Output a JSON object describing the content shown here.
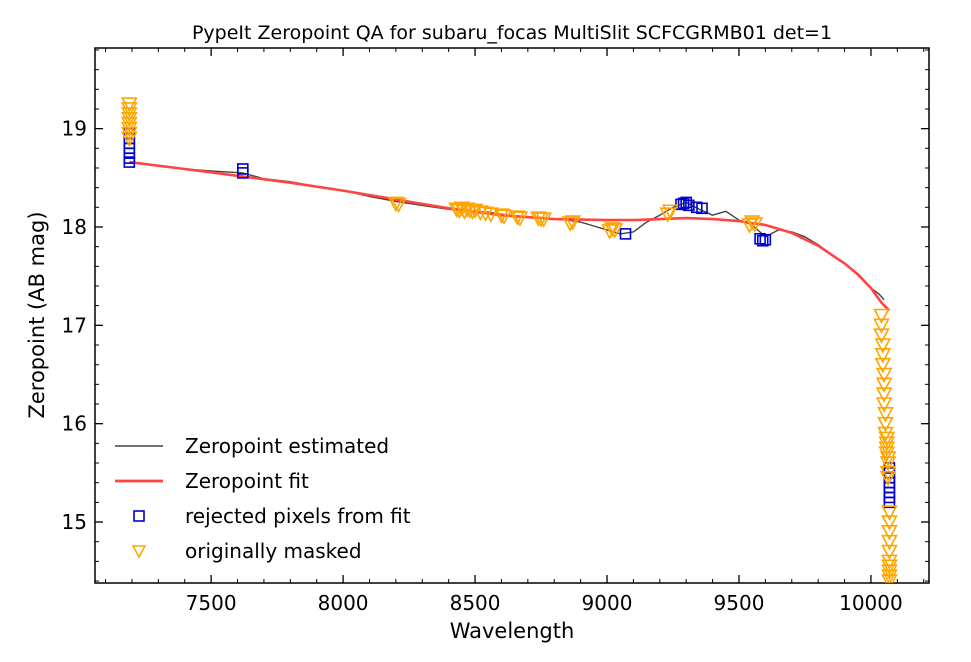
{
  "chart_data": {
    "type": "line",
    "title": "PypeIt Zeropoint QA for subaru_focas MultiSlit SCFCGRMB01 det=1",
    "xlabel": "Wavelength",
    "ylabel": "Zeropoint (AB mag)",
    "xlim": [
      7060,
      10220
    ],
    "ylim": [
      14.38,
      19.82
    ],
    "xticks": [
      7500,
      8000,
      8500,
      9000,
      9500,
      10000
    ],
    "xtick_labels": [
      "7500",
      "8000",
      "8500",
      "9000",
      "9500",
      "10000"
    ],
    "yticks": [
      15,
      16,
      17,
      18,
      19
    ],
    "ytick_labels": [
      "15",
      "16",
      "17",
      "18",
      "19"
    ],
    "legend_position": "lower-left",
    "grid": false,
    "series": [
      {
        "name": "Zeropoint estimated",
        "kind": "line",
        "color": "#444444",
        "x": [
          7190,
          7300,
          7400,
          7500,
          7620,
          7700,
          7800,
          7900,
          8000,
          8100,
          8200,
          8300,
          8400,
          8450,
          8500,
          8550,
          8600,
          8650,
          8700,
          8750,
          8800,
          8850,
          8900,
          8950,
          9000,
          9050,
          9100,
          9150,
          9200,
          9250,
          9300,
          9350,
          9400,
          9450,
          9500,
          9550,
          9600,
          9650,
          9700,
          9750,
          9800,
          9850,
          9900,
          9950,
          10000,
          10030,
          10050
        ],
        "y": [
          18.66,
          18.62,
          18.59,
          18.57,
          18.55,
          18.49,
          18.46,
          18.41,
          18.37,
          18.31,
          18.26,
          18.22,
          18.18,
          18.17,
          18.16,
          18.15,
          18.13,
          18.11,
          18.1,
          18.09,
          18.08,
          18.07,
          18.05,
          18.01,
          17.97,
          17.93,
          17.95,
          18.05,
          18.12,
          18.2,
          18.25,
          18.18,
          18.12,
          18.16,
          18.07,
          18.02,
          17.9,
          17.97,
          17.95,
          17.9,
          17.82,
          17.72,
          17.63,
          17.52,
          17.38,
          17.32,
          17.26
        ]
      },
      {
        "name": "Zeropoint fit",
        "kind": "line",
        "color": "#ff4444",
        "x": [
          7190,
          7400,
          7600,
          7800,
          8000,
          8200,
          8400,
          8600,
          8800,
          9000,
          9100,
          9200,
          9300,
          9400,
          9500,
          9600,
          9700,
          9800,
          9900,
          9950,
          10000,
          10040,
          10070
        ],
        "y": [
          18.66,
          18.59,
          18.52,
          18.45,
          18.37,
          18.28,
          18.19,
          18.12,
          18.08,
          18.07,
          18.07,
          18.08,
          18.09,
          18.08,
          18.06,
          18.02,
          17.94,
          17.81,
          17.63,
          17.52,
          17.38,
          17.23,
          17.15
        ]
      },
      {
        "name": "rejected pixels from fit",
        "kind": "marker",
        "marker": "square",
        "color": "#0000cc",
        "x": [
          7190,
          7190,
          7190,
          7190,
          7190,
          7190,
          7190,
          7620,
          7620,
          9070,
          9280,
          9290,
          9300,
          9310,
          9340,
          9360,
          9580,
          9590,
          9600,
          10070,
          10070,
          10070,
          10070,
          10070,
          10070,
          10070,
          10070
        ],
        "y": [
          18.66,
          18.7,
          18.75,
          18.8,
          18.85,
          18.9,
          18.95,
          18.55,
          18.59,
          17.93,
          18.23,
          18.24,
          18.25,
          18.22,
          18.2,
          18.19,
          17.88,
          17.86,
          17.87,
          15.2,
          15.25,
          15.3,
          15.35,
          15.4,
          15.45,
          15.5,
          15.55
        ]
      },
      {
        "name": "originally masked",
        "kind": "marker",
        "marker": "triangle-down",
        "color": "#ffa500",
        "x": [
          7190,
          7190,
          7190,
          7190,
          7190,
          7190,
          7190,
          7190,
          8200,
          8210,
          8430,
          8440,
          8450,
          8460,
          8470,
          8480,
          8490,
          8500,
          8520,
          8540,
          8560,
          8600,
          8610,
          8660,
          8670,
          8740,
          8750,
          8760,
          8860,
          8870,
          9010,
          9020,
          9030,
          9230,
          9240,
          9540,
          9550,
          9560,
          10040,
          10040,
          10040,
          10045,
          10045,
          10045,
          10050,
          10050,
          10050,
          10050,
          10055,
          10055,
          10055,
          10060,
          10060,
          10060,
          10060,
          10065,
          10065,
          10065,
          10065,
          10070,
          10070,
          10070,
          10070,
          10070,
          10070,
          10070,
          10070,
          10070,
          10070
        ],
        "y": [
          19.25,
          19.2,
          19.15,
          19.1,
          19.05,
          19.0,
          18.95,
          18.9,
          18.24,
          18.23,
          18.18,
          18.17,
          18.19,
          18.16,
          18.18,
          18.17,
          18.16,
          18.17,
          18.15,
          18.14,
          18.13,
          18.12,
          18.11,
          18.1,
          18.09,
          18.09,
          18.08,
          18.08,
          18.04,
          18.05,
          17.96,
          17.98,
          17.97,
          18.13,
          18.16,
          18.02,
          18.05,
          18.03,
          17.1,
          17.0,
          16.9,
          16.8,
          16.7,
          16.6,
          16.5,
          16.4,
          16.3,
          16.2,
          16.1,
          16.0,
          15.9,
          15.85,
          15.8,
          15.75,
          15.7,
          15.65,
          15.6,
          15.5,
          15.45,
          15.1,
          15.0,
          14.9,
          14.8,
          14.7,
          14.6,
          14.55,
          14.5,
          14.45,
          14.4
        ]
      }
    ]
  }
}
